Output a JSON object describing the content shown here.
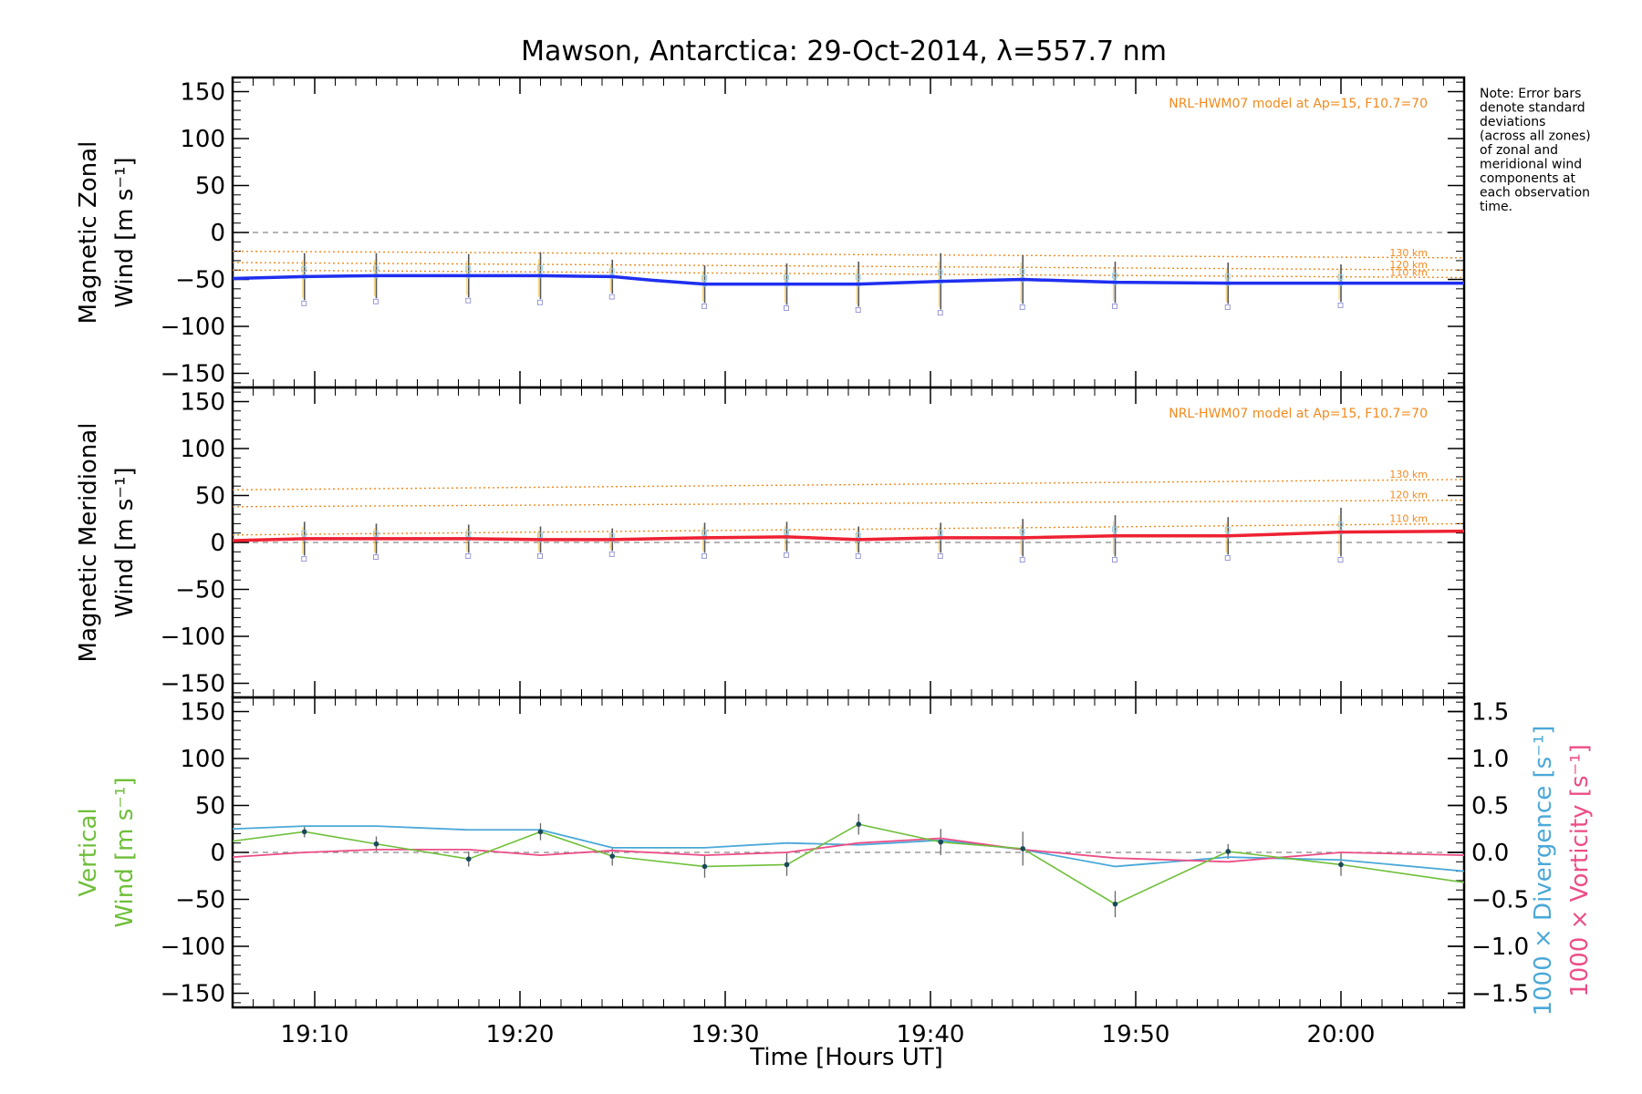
{
  "title": "Mawson, Antarctica: 29-Oct-2014, λ=557.7 nm",
  "note_lines": [
    "Note: Error bars",
    "denote standard",
    "deviations",
    "(across all zones)",
    "of zonal and",
    "meridional wind",
    "components at",
    "each observation",
    "time."
  ],
  "xlabel": "Time [Hours UT]",
  "model_label": "NRL-HWM07 model at Ap=15, F10.7=70",
  "alt_labels": [
    "130 km",
    "120 km",
    "110 km"
  ],
  "colors": {
    "zonal": "#1f2ff0",
    "meridional": "#ee2233",
    "vertical": "#6fbf3a",
    "divergence": "#4aa8d8",
    "vorticity": "#ec4d86",
    "model": "#f28a1e",
    "errorbar": "#555555"
  },
  "panels": [
    {
      "ylabel1": "Magnetic Zonal",
      "ylabel2": "Wind [m s⁻¹]"
    },
    {
      "ylabel1": "Magnetic Meridional",
      "ylabel2": "Wind [m s⁻¹]"
    },
    {
      "ylabel1": "Vertical",
      "ylabel2": "Wind [m s⁻¹]"
    }
  ],
  "right_axis": {
    "label_divergence": "1000 × Divergence [s⁻¹]",
    "label_vorticity": "1000 × Vorticity [s⁻¹]",
    "ticks": [
      "1.5",
      "1.0",
      "0.5",
      "0.0",
      "−0.5",
      "−1.0",
      "−1.5"
    ]
  },
  "chart_data": {
    "type": "line",
    "x_unit": "minutes after 19:00 UT",
    "x_ticks": [
      {
        "x": 10,
        "label": "19:10"
      },
      {
        "x": 20,
        "label": "19:20"
      },
      {
        "x": 30,
        "label": "19:30"
      },
      {
        "x": 40,
        "label": "19:40"
      },
      {
        "x": 50,
        "label": "19:50"
      },
      {
        "x": 60,
        "label": "20:00"
      }
    ],
    "y_ticks": [
      "150",
      "100",
      "50",
      "0",
      "−50",
      "−100",
      "−150"
    ],
    "xlim": [
      6,
      66
    ],
    "ylim": [
      -165,
      165
    ],
    "zonal": {
      "fit_x": [
        6,
        9.5,
        13,
        17.5,
        21,
        24.5,
        26.5,
        29,
        33,
        36.5,
        40.5,
        44.5,
        49,
        54.5,
        60,
        66
      ],
      "fit_y": [
        -49,
        -47,
        -46,
        -46,
        -46,
        -47,
        -51,
        -55,
        -55,
        -55,
        -52,
        -50,
        -53,
        -54,
        -54,
        -54
      ],
      "obs_x": [
        9.5,
        13,
        17.5,
        21,
        24.5,
        29,
        33,
        36.5,
        40.5,
        44.5,
        49,
        54.5,
        60
      ],
      "obs_y": [
        -47,
        -46,
        -46,
        -46,
        -47,
        -55,
        -55,
        -55,
        -52,
        -50,
        -53,
        -54,
        -54
      ],
      "err": [
        25,
        24,
        23,
        25,
        18,
        20,
        22,
        24,
        30,
        26,
        22,
        22,
        20
      ],
      "model_130": [
        -20,
        -27
      ],
      "model_120": [
        -32,
        -40
      ],
      "model_110": [
        -40,
        -48
      ]
    },
    "meridional": {
      "fit_x": [
        6,
        9.5,
        13,
        17.5,
        21,
        24.5,
        29,
        33,
        36.5,
        40.5,
        44.5,
        49,
        54.5,
        60,
        66
      ],
      "fit_y": [
        2,
        4,
        4,
        4,
        3,
        3,
        5,
        6,
        3,
        5,
        5,
        7,
        7,
        11,
        12
      ],
      "obs_x": [
        9.5,
        13,
        17.5,
        21,
        24.5,
        29,
        33,
        36.5,
        40.5,
        44.5,
        49,
        54.5,
        60
      ],
      "obs_y": [
        4,
        4,
        4,
        3,
        3,
        5,
        6,
        3,
        5,
        5,
        7,
        7,
        11
      ],
      "err": [
        18,
        16,
        15,
        14,
        12,
        16,
        16,
        14,
        16,
        20,
        22,
        20,
        26
      ],
      "model_130": [
        56,
        67
      ],
      "model_120": [
        38,
        45
      ],
      "model_110": [
        8,
        20
      ]
    },
    "vertical": {
      "x": [
        6,
        9.5,
        13,
        17.5,
        21,
        24.5,
        29,
        33,
        36.5,
        40.5,
        44.5,
        49,
        54.5,
        60,
        66
      ],
      "y": [
        12,
        22,
        9,
        -7,
        22,
        -4,
        -15,
        -13,
        30,
        11,
        4,
        -55,
        1,
        -13,
        -32
      ],
      "err": [
        0,
        6,
        8,
        8,
        9,
        10,
        12,
        12,
        11,
        14,
        18,
        14,
        8,
        12,
        0
      ],
      "divergence": [
        0.25,
        0.28,
        0.28,
        0.24,
        0.24,
        0.05,
        0.05,
        0.1,
        0.08,
        0.13,
        0.03,
        -0.15,
        -0.05,
        -0.08,
        -0.2
      ],
      "vorticity": [
        -0.05,
        0.0,
        0.03,
        0.03,
        -0.03,
        0.02,
        -0.03,
        0.0,
        0.1,
        0.15,
        0.03,
        -0.06,
        -0.1,
        0.0,
        -0.03
      ]
    }
  }
}
